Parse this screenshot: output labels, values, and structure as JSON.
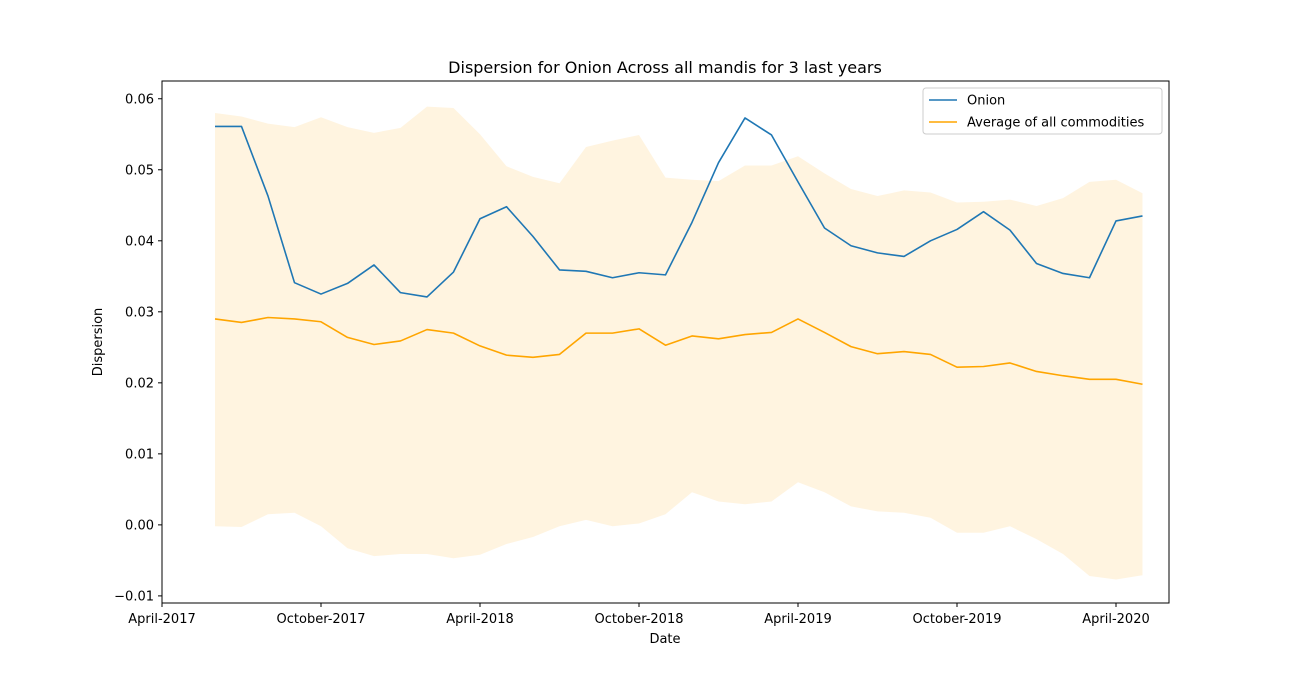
{
  "chart_data": {
    "type": "line",
    "title": "Dispersion for Onion Across all mandis for 3 last years",
    "xlabel": "Date",
    "ylabel": "Dispersion",
    "x": [
      "2017-06",
      "2017-07",
      "2017-08",
      "2017-09",
      "2017-10",
      "2017-11",
      "2017-12",
      "2018-01",
      "2018-02",
      "2018-03",
      "2018-04",
      "2018-05",
      "2018-06",
      "2018-07",
      "2018-08",
      "2018-09",
      "2018-10",
      "2018-11",
      "2018-12",
      "2019-01",
      "2019-02",
      "2019-03",
      "2019-04",
      "2019-05",
      "2019-06",
      "2019-07",
      "2019-08",
      "2019-09",
      "2019-10",
      "2019-11",
      "2019-12",
      "2020-01",
      "2020-02",
      "2020-03",
      "2020-04",
      "2020-05"
    ],
    "xlim": [
      "2017-04",
      "2020-06"
    ],
    "ylim": [
      -0.011,
      0.0625
    ],
    "x_ticks": [
      {
        "date": "2017-04",
        "label": "April-2017"
      },
      {
        "date": "2017-10",
        "label": "October-2017"
      },
      {
        "date": "2018-04",
        "label": "April-2018"
      },
      {
        "date": "2018-10",
        "label": "October-2018"
      },
      {
        "date": "2019-04",
        "label": "April-2019"
      },
      {
        "date": "2019-10",
        "label": "October-2019"
      },
      {
        "date": "2020-04",
        "label": "April-2020"
      }
    ],
    "y_ticks": [
      {
        "value": -0.01,
        "label": "−0.01"
      },
      {
        "value": 0.0,
        "label": "0.00"
      },
      {
        "value": 0.01,
        "label": "0.01"
      },
      {
        "value": 0.02,
        "label": "0.02"
      },
      {
        "value": 0.03,
        "label": "0.03"
      },
      {
        "value": 0.04,
        "label": "0.04"
      },
      {
        "value": 0.05,
        "label": "0.05"
      },
      {
        "value": 0.06,
        "label": "0.06"
      }
    ],
    "series": [
      {
        "name": "Onion",
        "color": "#1f77b4",
        "values": [
          0.0561,
          0.0561,
          0.0463,
          0.0341,
          0.0325,
          0.034,
          0.0366,
          0.0327,
          0.0321,
          0.0356,
          0.0431,
          0.0448,
          0.0406,
          0.0359,
          0.0357,
          0.0348,
          0.0355,
          0.0352,
          0.0426,
          0.051,
          0.0573,
          0.0549,
          0.0483,
          0.0418,
          0.0393,
          0.0383,
          0.0378,
          0.04,
          0.0416,
          0.0441,
          0.0415,
          0.0368,
          0.0354,
          0.0348,
          0.0428,
          0.0435
        ]
      },
      {
        "name": "Average of all commodities",
        "color": "#ffa500",
        "values": [
          0.029,
          0.0285,
          0.0292,
          0.029,
          0.0286,
          0.0264,
          0.0254,
          0.0259,
          0.0275,
          0.027,
          0.0252,
          0.0239,
          0.0236,
          0.024,
          0.027,
          0.027,
          0.0276,
          0.0253,
          0.0266,
          0.0262,
          0.0268,
          0.0271,
          0.029,
          0.0271,
          0.0251,
          0.0241,
          0.0244,
          0.024,
          0.0222,
          0.0223,
          0.0228,
          0.0216,
          0.021,
          0.0205,
          0.0205,
          0.0198
        ]
      }
    ],
    "band": {
      "color": "#ffa500",
      "opacity": 0.12,
      "upper": [
        0.058,
        0.0575,
        0.0565,
        0.056,
        0.0574,
        0.056,
        0.0552,
        0.0559,
        0.0589,
        0.0587,
        0.055,
        0.0505,
        0.049,
        0.0481,
        0.0532,
        0.0541,
        0.0549,
        0.0489,
        0.0486,
        0.0484,
        0.0506,
        0.0506,
        0.0519,
        0.0495,
        0.0473,
        0.0463,
        0.0471,
        0.0468,
        0.0454,
        0.0455,
        0.0458,
        0.0449,
        0.046,
        0.0483,
        0.0486,
        0.0467
      ],
      "lower": [
        -0.0002,
        -0.0003,
        0.0015,
        0.0017,
        -0.0002,
        -0.0033,
        -0.0044,
        -0.0041,
        -0.0041,
        -0.0047,
        -0.0042,
        -0.0027,
        -0.0017,
        -0.0002,
        0.0007,
        -0.0002,
        0.0002,
        0.0015,
        0.0046,
        0.0033,
        0.0029,
        0.0033,
        0.006,
        0.0046,
        0.0026,
        0.0019,
        0.0017,
        0.001,
        -0.0011,
        -0.0011,
        -0.0002,
        -0.002,
        -0.0041,
        -0.0072,
        -0.0077,
        -0.0071
      ]
    },
    "legend_position": "top-right",
    "grid": false
  }
}
